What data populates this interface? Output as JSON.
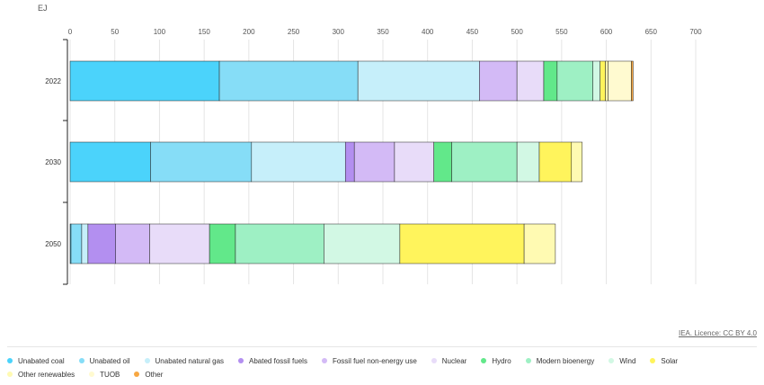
{
  "colors": {
    "Unabated coal": "#4bd3fb",
    "Unabated oil": "#86ddf7",
    "Unabated natural gas": "#c6effa",
    "Abated fossil fuels": "#b38ff0",
    "Fossil fuel non-energy use": "#d3baf6",
    "Nuclear": "#e8dcf9",
    "Hydro": "#62e88a",
    "Modern bioenergy": "#9ef0c4",
    "Wind": "#d2f8e4",
    "Solar": "#fff45c",
    "Other renewables": "#fffab2",
    "TUOB": "#fffad0",
    "Other": "#f7a742"
  },
  "chart_data": {
    "type": "bar",
    "orientation": "horizontal",
    "stacked": true,
    "title": "",
    "xlabel": "",
    "unit": "EJ",
    "xlim": [
      0,
      700
    ],
    "xticks": [
      0,
      50,
      100,
      150,
      200,
      250,
      300,
      350,
      400,
      450,
      500,
      550,
      600,
      650,
      700
    ],
    "categories": [
      "2022",
      "2030",
      "2050"
    ],
    "series": [
      {
        "name": "Unabated coal",
        "values": [
          167,
          90,
          1
        ]
      },
      {
        "name": "Unabated oil",
        "values": [
          155,
          113,
          12
        ]
      },
      {
        "name": "Unabated natural gas",
        "values": [
          136,
          105,
          7
        ]
      },
      {
        "name": "Abated fossil fuels",
        "values": [
          0,
          10,
          31
        ]
      },
      {
        "name": "Fossil fuel non-energy use",
        "values": [
          42,
          45,
          38
        ]
      },
      {
        "name": "Nuclear",
        "values": [
          30,
          44,
          67
        ]
      },
      {
        "name": "Hydro",
        "values": [
          15,
          20,
          29
        ]
      },
      {
        "name": "Modern bioenergy",
        "values": [
          40,
          73,
          99
        ]
      },
      {
        "name": "Wind",
        "values": [
          8,
          25,
          85
        ]
      },
      {
        "name": "Solar",
        "values": [
          6,
          36,
          139
        ]
      },
      {
        "name": "Other renewables",
        "values": [
          3,
          12,
          35
        ]
      },
      {
        "name": "TUOB",
        "values": [
          26,
          0,
          0
        ]
      },
      {
        "name": "Other",
        "values": [
          2,
          0,
          0
        ]
      }
    ],
    "legend_position": "bottom",
    "grid": "vertical"
  },
  "licence_text": "IEA. Licence: CC BY 4.0"
}
